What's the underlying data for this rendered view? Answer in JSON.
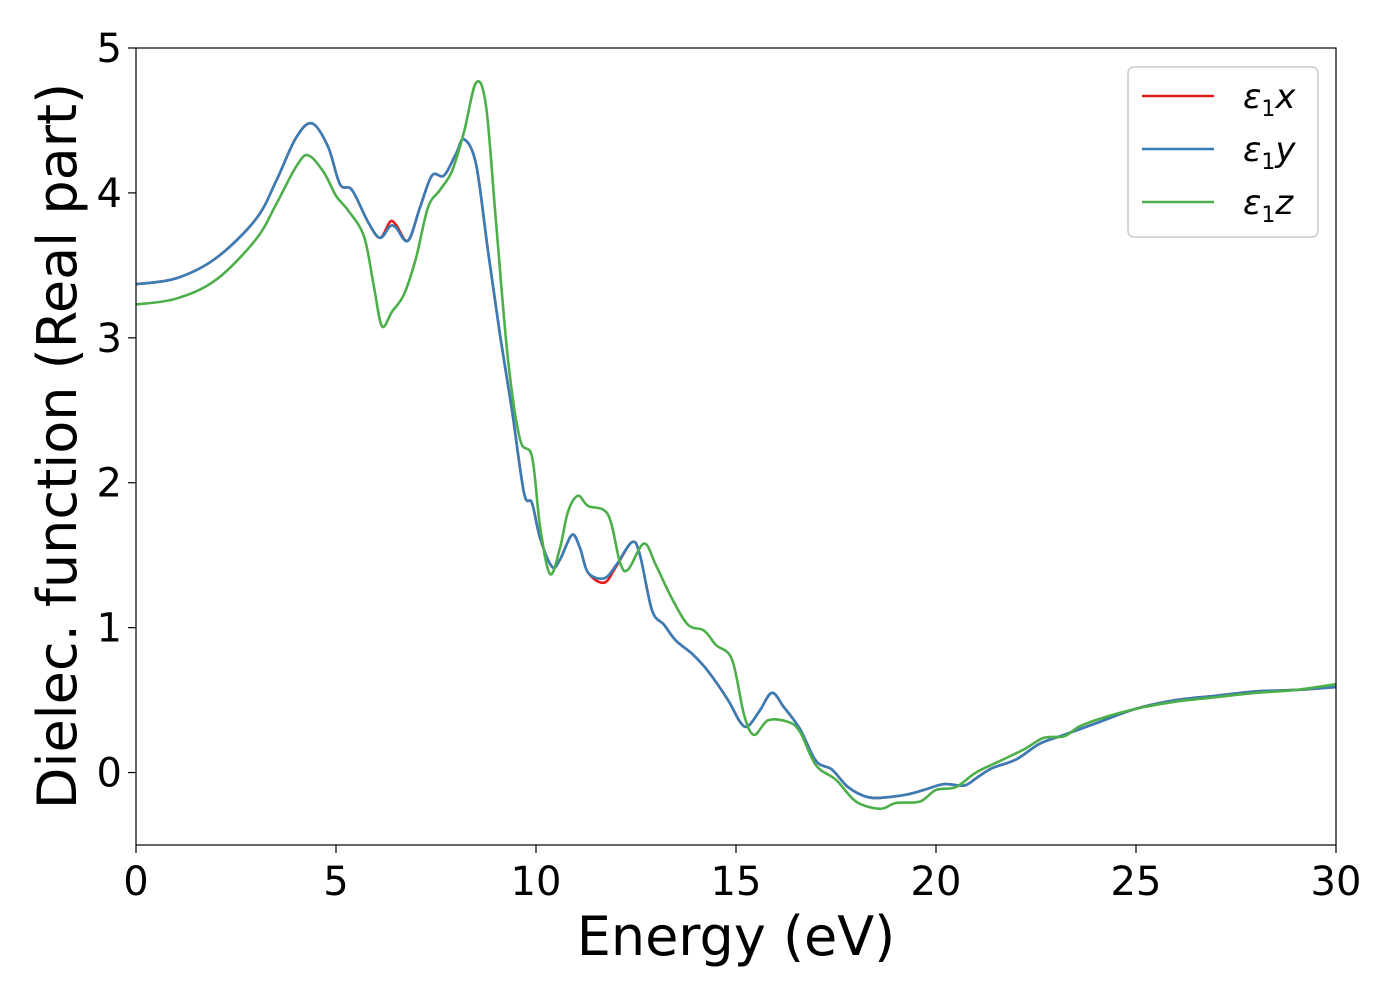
{
  "chart_data": {
    "type": "line",
    "title": "",
    "xlabel": "Energy (eV)",
    "ylabel": "Dielec. function (Real part)",
    "xlim": [
      0,
      30
    ],
    "ylim": [
      -0.5,
      5
    ],
    "xticks": [
      0,
      5,
      10,
      15,
      20,
      25,
      30
    ],
    "yticks": [
      0,
      1,
      2,
      3,
      4,
      5
    ],
    "grid": false,
    "legend_position": "top-right",
    "series": [
      {
        "name": "ε₁x",
        "legend_base": "ε",
        "legend_sub": "1",
        "legend_var": "x",
        "color": "#e41a1c",
        "points": [
          [
            0,
            3.37
          ],
          [
            1,
            3.41
          ],
          [
            2,
            3.55
          ],
          [
            3,
            3.82
          ],
          [
            3.5,
            4.08
          ],
          [
            4,
            4.38
          ],
          [
            4.4,
            4.48
          ],
          [
            4.8,
            4.32
          ],
          [
            5.1,
            4.06
          ],
          [
            5.4,
            4.02
          ],
          [
            5.8,
            3.8
          ],
          [
            6.1,
            3.69
          ],
          [
            6.35,
            3.8
          ],
          [
            6.5,
            3.78
          ],
          [
            6.8,
            3.67
          ],
          [
            7.1,
            3.9
          ],
          [
            7.4,
            4.12
          ],
          [
            7.7,
            4.12
          ],
          [
            8.0,
            4.27
          ],
          [
            8.2,
            4.37
          ],
          [
            8.5,
            4.2
          ],
          [
            8.8,
            3.6
          ],
          [
            9.1,
            3.02
          ],
          [
            9.4,
            2.5
          ],
          [
            9.7,
            1.93
          ],
          [
            9.9,
            1.86
          ],
          [
            10.1,
            1.62
          ],
          [
            10.4,
            1.42
          ],
          [
            10.6,
            1.47
          ],
          [
            10.9,
            1.64
          ],
          [
            11.1,
            1.55
          ],
          [
            11.3,
            1.38
          ],
          [
            11.7,
            1.31
          ],
          [
            12.0,
            1.42
          ],
          [
            12.4,
            1.59
          ],
          [
            12.6,
            1.5
          ],
          [
            12.9,
            1.12
          ],
          [
            13.2,
            1.02
          ],
          [
            13.5,
            0.91
          ],
          [
            13.9,
            0.82
          ],
          [
            14.3,
            0.7
          ],
          [
            14.8,
            0.5
          ],
          [
            15.1,
            0.35
          ],
          [
            15.3,
            0.32
          ],
          [
            15.6,
            0.43
          ],
          [
            15.9,
            0.55
          ],
          [
            16.2,
            0.45
          ],
          [
            16.6,
            0.3
          ],
          [
            17.0,
            0.08
          ],
          [
            17.4,
            0.02
          ],
          [
            17.8,
            -0.1
          ],
          [
            18.3,
            -0.17
          ],
          [
            18.8,
            -0.17
          ],
          [
            19.3,
            -0.15
          ],
          [
            19.7,
            -0.12
          ],
          [
            20.2,
            -0.08
          ],
          [
            20.7,
            -0.09
          ],
          [
            21.0,
            -0.04
          ],
          [
            21.4,
            0.03
          ],
          [
            22.0,
            0.09
          ],
          [
            22.6,
            0.2
          ],
          [
            23.2,
            0.26
          ],
          [
            24.0,
            0.34
          ],
          [
            25.0,
            0.44
          ],
          [
            26.0,
            0.5
          ],
          [
            27.0,
            0.53
          ],
          [
            28.0,
            0.56
          ],
          [
            29.0,
            0.57
          ],
          [
            30.0,
            0.59
          ]
        ]
      },
      {
        "name": "ε₁y",
        "legend_base": "ε",
        "legend_sub": "1",
        "legend_var": "y",
        "color": "#377eb8",
        "points": [
          [
            0,
            3.37
          ],
          [
            1,
            3.41
          ],
          [
            2,
            3.55
          ],
          [
            3,
            3.82
          ],
          [
            3.5,
            4.08
          ],
          [
            4,
            4.38
          ],
          [
            4.4,
            4.48
          ],
          [
            4.8,
            4.32
          ],
          [
            5.1,
            4.06
          ],
          [
            5.4,
            4.02
          ],
          [
            5.8,
            3.8
          ],
          [
            6.1,
            3.69
          ],
          [
            6.35,
            3.77
          ],
          [
            6.5,
            3.76
          ],
          [
            6.8,
            3.67
          ],
          [
            7.1,
            3.9
          ],
          [
            7.4,
            4.12
          ],
          [
            7.7,
            4.12
          ],
          [
            8.0,
            4.27
          ],
          [
            8.2,
            4.37
          ],
          [
            8.5,
            4.2
          ],
          [
            8.8,
            3.6
          ],
          [
            9.1,
            3.02
          ],
          [
            9.4,
            2.5
          ],
          [
            9.7,
            1.93
          ],
          [
            9.9,
            1.86
          ],
          [
            10.1,
            1.62
          ],
          [
            10.4,
            1.42
          ],
          [
            10.6,
            1.47
          ],
          [
            10.9,
            1.64
          ],
          [
            11.1,
            1.55
          ],
          [
            11.3,
            1.38
          ],
          [
            11.7,
            1.34
          ],
          [
            12.0,
            1.43
          ],
          [
            12.4,
            1.59
          ],
          [
            12.6,
            1.5
          ],
          [
            12.9,
            1.12
          ],
          [
            13.2,
            1.02
          ],
          [
            13.5,
            0.91
          ],
          [
            13.9,
            0.82
          ],
          [
            14.3,
            0.7
          ],
          [
            14.8,
            0.5
          ],
          [
            15.1,
            0.35
          ],
          [
            15.3,
            0.32
          ],
          [
            15.6,
            0.43
          ],
          [
            15.9,
            0.55
          ],
          [
            16.2,
            0.45
          ],
          [
            16.6,
            0.3
          ],
          [
            17.0,
            0.08
          ],
          [
            17.4,
            0.02
          ],
          [
            17.8,
            -0.1
          ],
          [
            18.3,
            -0.17
          ],
          [
            18.8,
            -0.17
          ],
          [
            19.3,
            -0.15
          ],
          [
            19.7,
            -0.12
          ],
          [
            20.2,
            -0.08
          ],
          [
            20.7,
            -0.09
          ],
          [
            21.0,
            -0.04
          ],
          [
            21.4,
            0.03
          ],
          [
            22.0,
            0.09
          ],
          [
            22.6,
            0.2
          ],
          [
            23.2,
            0.26
          ],
          [
            24.0,
            0.34
          ],
          [
            25.0,
            0.44
          ],
          [
            26.0,
            0.5
          ],
          [
            27.0,
            0.53
          ],
          [
            28.0,
            0.56
          ],
          [
            29.0,
            0.57
          ],
          [
            30.0,
            0.59
          ]
        ]
      },
      {
        "name": "ε₁z",
        "legend_base": "ε",
        "legend_sub": "1",
        "legend_var": "z",
        "color": "#4daf4a",
        "points": [
          [
            0,
            3.23
          ],
          [
            1,
            3.27
          ],
          [
            2,
            3.4
          ],
          [
            3,
            3.68
          ],
          [
            3.5,
            3.92
          ],
          [
            4,
            4.18
          ],
          [
            4.3,
            4.26
          ],
          [
            4.7,
            4.14
          ],
          [
            5.0,
            3.98
          ],
          [
            5.3,
            3.88
          ],
          [
            5.7,
            3.7
          ],
          [
            5.95,
            3.35
          ],
          [
            6.15,
            3.08
          ],
          [
            6.4,
            3.18
          ],
          [
            6.7,
            3.3
          ],
          [
            7.0,
            3.55
          ],
          [
            7.3,
            3.9
          ],
          [
            7.6,
            4.02
          ],
          [
            7.9,
            4.15
          ],
          [
            8.2,
            4.42
          ],
          [
            8.5,
            4.76
          ],
          [
            8.75,
            4.6
          ],
          [
            9.0,
            3.8
          ],
          [
            9.3,
            2.85
          ],
          [
            9.6,
            2.3
          ],
          [
            9.9,
            2.18
          ],
          [
            10.1,
            1.7
          ],
          [
            10.35,
            1.37
          ],
          [
            10.6,
            1.55
          ],
          [
            10.8,
            1.8
          ],
          [
            11.05,
            1.91
          ],
          [
            11.3,
            1.84
          ],
          [
            11.8,
            1.78
          ],
          [
            12.1,
            1.45
          ],
          [
            12.3,
            1.4
          ],
          [
            12.7,
            1.58
          ],
          [
            13.0,
            1.43
          ],
          [
            13.4,
            1.2
          ],
          [
            13.8,
            1.02
          ],
          [
            14.2,
            0.98
          ],
          [
            14.5,
            0.88
          ],
          [
            14.9,
            0.78
          ],
          [
            15.2,
            0.4
          ],
          [
            15.45,
            0.26
          ],
          [
            15.8,
            0.36
          ],
          [
            16.3,
            0.35
          ],
          [
            16.6,
            0.28
          ],
          [
            17.0,
            0.05
          ],
          [
            17.5,
            -0.05
          ],
          [
            18.0,
            -0.2
          ],
          [
            18.6,
            -0.25
          ],
          [
            19.0,
            -0.21
          ],
          [
            19.6,
            -0.2
          ],
          [
            20.0,
            -0.12
          ],
          [
            20.5,
            -0.1
          ],
          [
            21.0,
            0.0
          ],
          [
            21.6,
            0.08
          ],
          [
            22.2,
            0.16
          ],
          [
            22.7,
            0.24
          ],
          [
            23.2,
            0.25
          ],
          [
            23.6,
            0.32
          ],
          [
            24.2,
            0.38
          ],
          [
            25.0,
            0.44
          ],
          [
            26.0,
            0.49
          ],
          [
            27.0,
            0.52
          ],
          [
            28.0,
            0.55
          ],
          [
            29.0,
            0.57
          ],
          [
            30.0,
            0.61
          ]
        ]
      }
    ]
  }
}
